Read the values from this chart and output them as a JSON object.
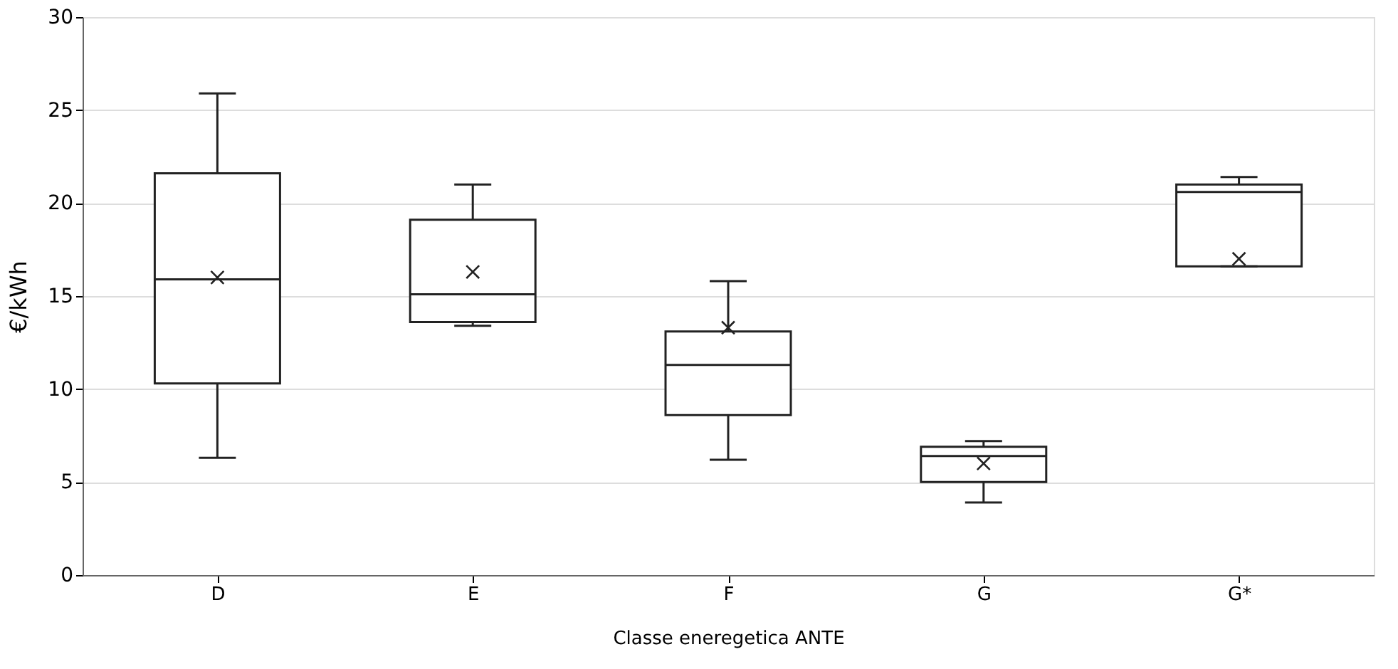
{
  "chart_data": {
    "type": "box",
    "xlabel": "Classe eneregetica ANTE",
    "ylabel": "€/kWh",
    "categories": [
      "D",
      "E",
      "F",
      "G",
      "G*"
    ],
    "boxes": [
      {
        "low": 6.3,
        "q1": 10.3,
        "median": 15.9,
        "q3": 21.6,
        "high": 25.9,
        "mean": 16.0
      },
      {
        "low": 13.4,
        "q1": 13.6,
        "median": 15.1,
        "q3": 19.1,
        "high": 21.0,
        "mean": 16.3
      },
      {
        "low": 6.2,
        "q1": 8.6,
        "median": 11.3,
        "q3": 13.1,
        "high": 15.8,
        "mean": 13.3
      },
      {
        "low": 3.9,
        "q1": 5.0,
        "median": 6.4,
        "q3": 6.9,
        "high": 7.2,
        "mean": 6.0
      },
      {
        "low": 16.6,
        "q1": 16.6,
        "median": 20.6,
        "q3": 21.0,
        "high": 21.4,
        "mean": 17.0
      }
    ],
    "ylim": [
      0,
      30
    ],
    "yticks": [
      0,
      5,
      10,
      15,
      20,
      25,
      30
    ],
    "grid": "y",
    "marker": "cross"
  }
}
